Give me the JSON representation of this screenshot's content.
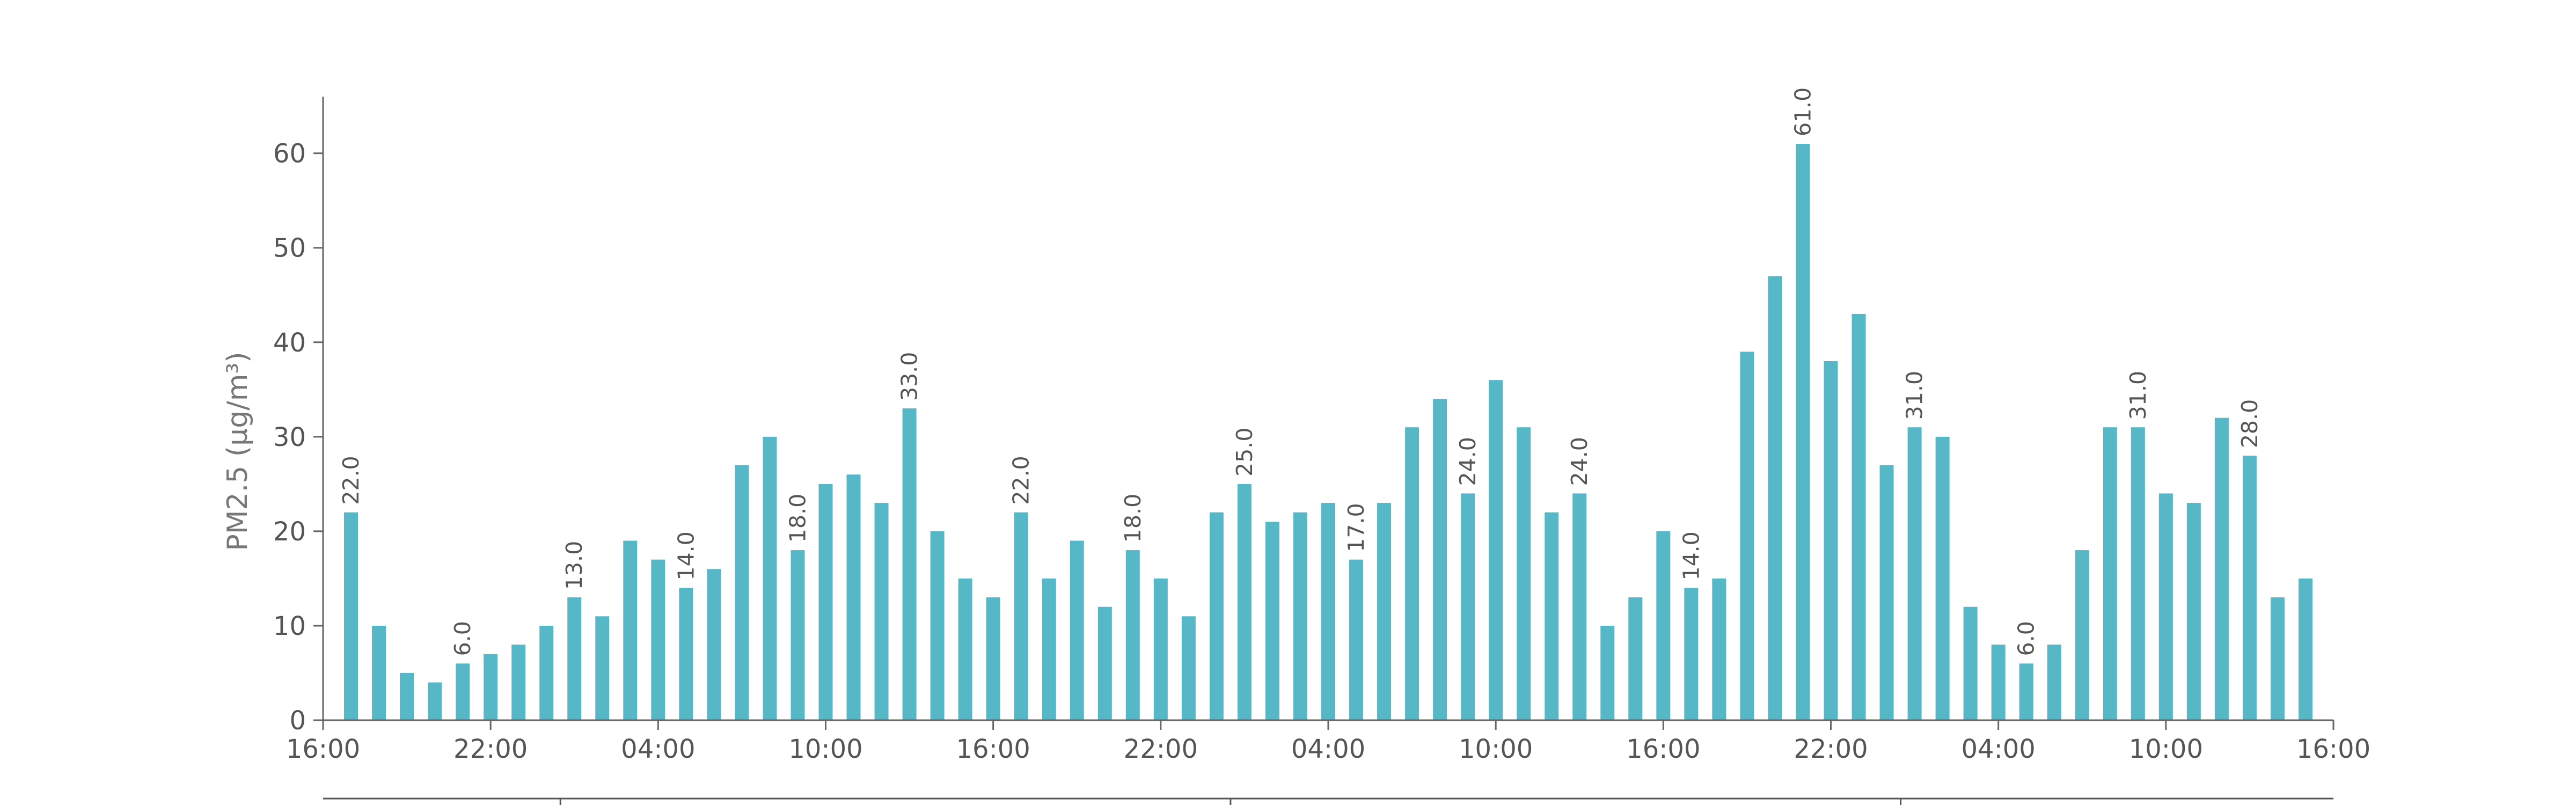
{
  "chart_data": {
    "type": "bar",
    "ylabel": "PM2.5 (μg/m³)",
    "ylim": [
      0,
      66
    ],
    "yticks": [
      0,
      10,
      20,
      30,
      40,
      50,
      60
    ],
    "x_tick_labels": [
      "16:00",
      "22:00",
      "04:00",
      "10:00",
      "16:00",
      "22:00",
      "04:00",
      "10:00",
      "16:00",
      "22:00",
      "04:00",
      "10:00",
      "16:00"
    ],
    "x_tick_interval_bars": 6,
    "grid": false,
    "legend": "none",
    "bar_color": "#56b8c6",
    "values": [
      22,
      10,
      5,
      4,
      6,
      7,
      8,
      10,
      13,
      11,
      19,
      17,
      14,
      16,
      27,
      30,
      18,
      25,
      26,
      23,
      33,
      20,
      15,
      13,
      22,
      15,
      19,
      12,
      18,
      15,
      11,
      22,
      25,
      21,
      22,
      23,
      17,
      23,
      31,
      34,
      24,
      36,
      31,
      22,
      24,
      10,
      13,
      20,
      14,
      15,
      39,
      47,
      61,
      38,
      43,
      27,
      31,
      30,
      12,
      8,
      6,
      8,
      18,
      31,
      31,
      24,
      23,
      32,
      28,
      13,
      15
    ],
    "data_labels": [
      {
        "index": 0,
        "text": "22.0"
      },
      {
        "index": 4,
        "text": "6.0"
      },
      {
        "index": 8,
        "text": "13.0"
      },
      {
        "index": 12,
        "text": "14.0"
      },
      {
        "index": 16,
        "text": "18.0"
      },
      {
        "index": 20,
        "text": "33.0"
      },
      {
        "index": 24,
        "text": "22.0"
      },
      {
        "index": 28,
        "text": "18.0"
      },
      {
        "index": 32,
        "text": "25.0"
      },
      {
        "index": 36,
        "text": "17.0"
      },
      {
        "index": 40,
        "text": "24.0"
      },
      {
        "index": 44,
        "text": "24.0"
      },
      {
        "index": 48,
        "text": "14.0"
      },
      {
        "index": 52,
        "text": "61.0"
      },
      {
        "index": 56,
        "text": "31.0"
      },
      {
        "index": 60,
        "text": "6.0"
      },
      {
        "index": 64,
        "text": "31.0"
      },
      {
        "index": 68,
        "text": "28.0"
      }
    ],
    "secondary_axis_ticks": [
      8,
      32,
      56
    ]
  }
}
